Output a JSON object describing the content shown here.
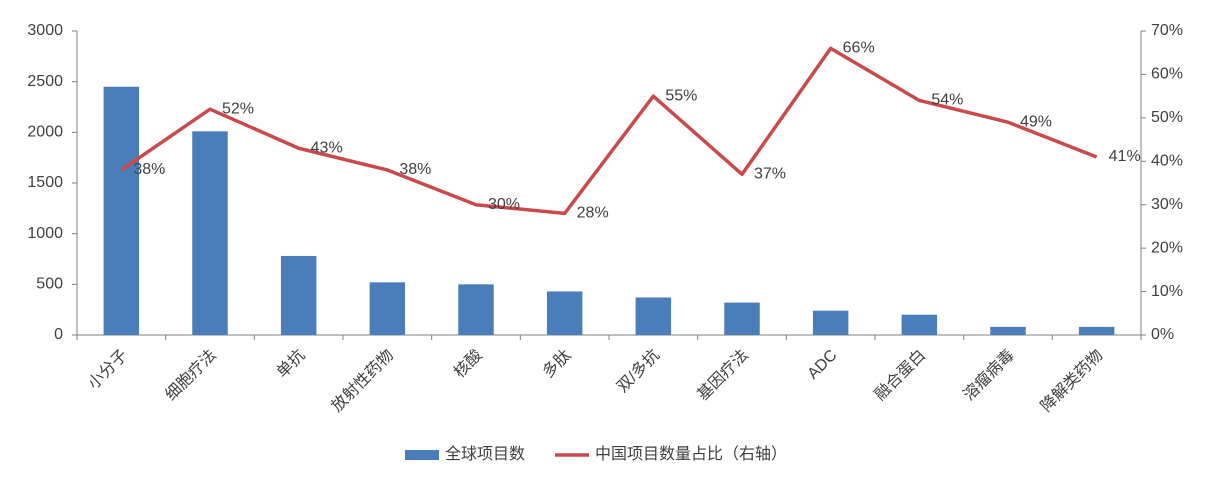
{
  "chart_data": {
    "type": "combo",
    "categories": [
      "小分子",
      "细胞疗法",
      "单抗",
      "放射性药物",
      "核酸",
      "多肽",
      "双/多抗",
      "基因疗法",
      "ADC",
      "融合蛋白",
      "溶瘤病毒",
      "降解类药物"
    ],
    "series": [
      {
        "name": "全球项目数",
        "type": "bar",
        "color": "#4a7ebb",
        "values": [
          2450,
          2010,
          780,
          520,
          500,
          430,
          370,
          320,
          240,
          200,
          80,
          80
        ]
      },
      {
        "name": "中国项目数量占比（右轴）",
        "type": "line",
        "axis": "y2",
        "color": "#c94a4a",
        "values": [
          38,
          52,
          43,
          38,
          30,
          28,
          55,
          37,
          66,
          54,
          49,
          41
        ],
        "value_labels": [
          "38%",
          "52%",
          "43%",
          "38%",
          "30%",
          "28%",
          "55%",
          "37%",
          "66%",
          "54%",
          "49%",
          "41%"
        ]
      }
    ],
    "ylim": [
      0,
      3000
    ],
    "yticks": [
      0,
      500,
      1000,
      1500,
      2000,
      2500,
      3000
    ],
    "y2lim": [
      0,
      70
    ],
    "y2ticks": [
      {
        "value": 0,
        "label": "0%"
      },
      {
        "value": 10,
        "label": "10%"
      },
      {
        "value": 20,
        "label": "20%"
      },
      {
        "value": 30,
        "label": "30%"
      },
      {
        "value": 40,
        "label": "40%"
      },
      {
        "value": 50,
        "label": "50%"
      },
      {
        "value": 60,
        "label": "60%"
      },
      {
        "value": 70,
        "label": "70%"
      }
    ],
    "grid": false,
    "legend": "bottom"
  }
}
